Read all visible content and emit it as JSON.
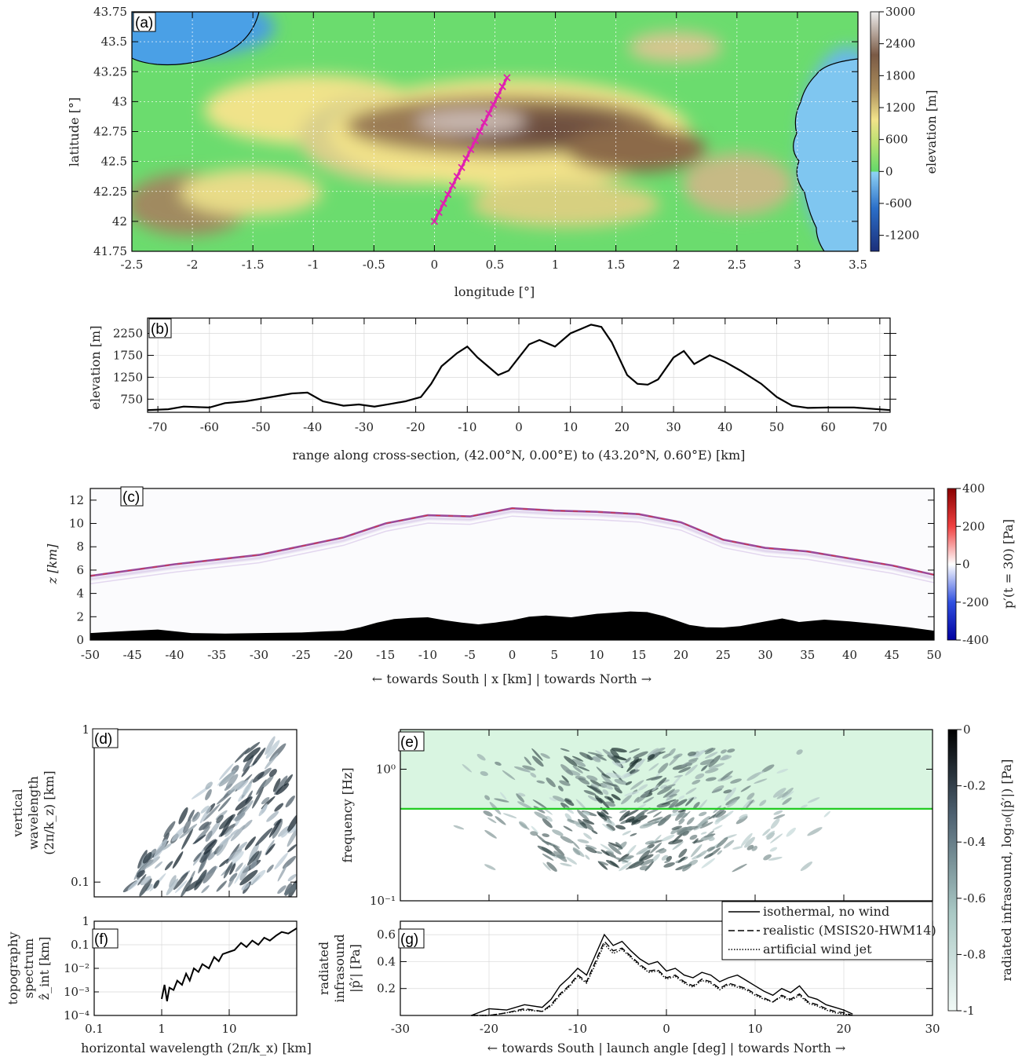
{
  "panels": {
    "a": {
      "label": "(a)",
      "xlabel": "longitude [°]",
      "ylabel": "latitude [°]",
      "xticks": [
        "-2.5",
        "-2",
        "-1.5",
        "-1",
        "-0.5",
        "0",
        "0.5",
        "1",
        "1.5",
        "2",
        "2.5",
        "3",
        "3.5"
      ],
      "yticks": [
        "43.75",
        "43.5",
        "43.25",
        "43",
        "42.75",
        "42.5",
        "42.25",
        "42",
        "41.75"
      ],
      "colorbar_label": "elevation [m]",
      "colorbar_ticks": [
        "3000",
        "2400",
        "1800",
        "1200",
        "600",
        "0",
        "-600",
        "-1200"
      ]
    },
    "b": {
      "label": "(b)",
      "ylabel": "elevation [m]",
      "xlabel": "range along cross-section, (42.00°N, 0.00°E) to (43.20°N, 0.60°E) [km]",
      "xticks": [
        "-70",
        "-60",
        "-50",
        "-40",
        "-30",
        "-20",
        "-10",
        "0",
        "10",
        "20",
        "30",
        "40",
        "50",
        "60",
        "70"
      ],
      "yticks": [
        "2250",
        "1750",
        "1250",
        "750"
      ]
    },
    "c": {
      "label": "(c)",
      "ylabel": "z [km]",
      "xlabel": "← towards South | x [km] | towards North →",
      "xticks": [
        "-50",
        "-45",
        "-40",
        "-35",
        "-30",
        "-25",
        "-20",
        "-15",
        "-10",
        "-5",
        "0",
        "5",
        "10",
        "15",
        "20",
        "25",
        "30",
        "35",
        "40",
        "45",
        "50"
      ],
      "yticks": [
        "12",
        "10",
        "8",
        "6",
        "4",
        "2",
        "0"
      ],
      "colorbar_label": "p′(t = 30) [Pa]",
      "colorbar_ticks": [
        "400",
        "200",
        "0",
        "-200",
        "-400"
      ]
    },
    "d": {
      "label": "(d)",
      "ylabel_lines": [
        "vertical",
        "wavelength",
        "(2π/k_z) [km]"
      ],
      "yticks": [
        "1",
        "0.1"
      ]
    },
    "e": {
      "label": "(e)",
      "ylabel": "frequency [Hz]",
      "yticks": [
        "10⁰",
        "10⁻¹"
      ],
      "colorbar_label": "radiated infrasound, log₁₀(|p̂′|) [Pa]",
      "colorbar_ticks": [
        "0",
        "-0.2",
        "-0.4",
        "-0.6",
        "-0.8",
        "-1"
      ]
    },
    "f": {
      "label": "(f)",
      "ylabel_lines": [
        "topography",
        "spectrum",
        "ẑ_int [km]"
      ],
      "yticks": [
        "1",
        "0.1",
        "10⁻²",
        "10⁻³",
        "10⁻⁴"
      ],
      "xticks": [
        "0.1",
        "1",
        "10"
      ],
      "xlabel": "horizontal wavelength (2π/k_x) [km]"
    },
    "g": {
      "label": "(g)",
      "ylabel_lines": [
        "radiated",
        "infrasound",
        "|p̂′| [Pa]"
      ],
      "yticks": [
        "0.6",
        "0.4",
        "0.2"
      ],
      "xticks": [
        "-30",
        "-20",
        "-10",
        "0",
        "10",
        "20",
        "30"
      ],
      "xlabel": "← towards South | launch angle [deg] | towards North →",
      "legend": [
        "isothermal, no wind",
        "realistic (MSIS20-HWM14)",
        "artificial wind jet"
      ]
    }
  },
  "colors": {
    "line": "#000000",
    "transect": "#e020b0",
    "band": "#bff0cc",
    "band_edge": "#22cc22"
  },
  "chart_data": [
    {
      "type": "heatmap",
      "panel": "a",
      "title": "",
      "xlabel": "longitude [°]",
      "ylabel": "latitude [°]",
      "xlim": [
        -2.5,
        3.5
      ],
      "ylim": [
        41.75,
        43.75
      ],
      "clim": [
        -1500,
        3000
      ],
      "transect": {
        "lon": [
          0.0,
          0.6
        ],
        "lat": [
          42.0,
          43.2
        ]
      }
    },
    {
      "type": "line",
      "panel": "b",
      "xlabel": "range along cross-section, (42.00°N, 0.00°E) to (43.20°N, 0.60°E) [km]",
      "ylabel": "elevation [m]",
      "xlim": [
        -72,
        72
      ],
      "ylim": [
        450,
        2600
      ],
      "x": [
        -72,
        -68,
        -65,
        -60,
        -57,
        -53,
        -48,
        -44,
        -41,
        -38,
        -34,
        -31,
        -28,
        -25,
        -22,
        -19,
        -17,
        -15,
        -12,
        -10,
        -8,
        -6,
        -4,
        -2,
        0,
        2,
        4,
        7,
        10,
        12,
        14,
        16,
        18,
        21,
        23,
        25,
        27,
        30,
        32,
        34,
        37,
        40,
        43,
        47,
        50,
        53,
        56,
        60,
        65,
        72
      ],
      "y": [
        500,
        520,
        580,
        560,
        660,
        700,
        800,
        880,
        900,
        700,
        600,
        630,
        580,
        640,
        700,
        800,
        1100,
        1500,
        1800,
        1950,
        1700,
        1500,
        1300,
        1400,
        1700,
        2000,
        2100,
        1950,
        2250,
        2350,
        2450,
        2400,
        2050,
        1300,
        1100,
        1080,
        1200,
        1700,
        1850,
        1550,
        1750,
        1600,
        1400,
        1100,
        800,
        600,
        550,
        560,
        560,
        500
      ]
    },
    {
      "type": "heatmap",
      "panel": "c",
      "xlabel": "← towards South | x [km] | towards North →",
      "ylabel": "z [km]",
      "xlim": [
        -50,
        50
      ],
      "ylim": [
        0,
        13
      ],
      "clim": [
        -400,
        400
      ],
      "terrain_x": [
        -50,
        -45,
        -42,
        -38,
        -34,
        -30,
        -25,
        -22,
        -20,
        -18,
        -16,
        -14,
        -12,
        -10,
        -8,
        -6,
        -4,
        -2,
        0,
        2,
        4,
        7,
        10,
        12,
        14,
        16,
        18,
        21,
        23,
        25,
        27,
        30,
        32,
        34,
        37,
        40,
        43,
        47,
        50
      ],
      "terrain_z": [
        0.6,
        0.8,
        0.9,
        0.6,
        0.55,
        0.6,
        0.65,
        0.75,
        0.8,
        1.1,
        1.5,
        1.8,
        1.9,
        1.95,
        1.7,
        1.5,
        1.35,
        1.5,
        1.7,
        2.0,
        2.1,
        1.95,
        2.25,
        2.35,
        2.45,
        2.4,
        2.05,
        1.3,
        1.1,
        1.08,
        1.2,
        1.6,
        1.85,
        1.55,
        1.75,
        1.6,
        1.4,
        1.1,
        0.8
      ],
      "wavefront_x": [
        -50,
        -40,
        -30,
        -20,
        -15,
        -10,
        -5,
        0,
        5,
        10,
        15,
        20,
        25,
        30,
        35,
        40,
        45,
        50
      ],
      "wavefront_z": [
        5.5,
        6.5,
        7.3,
        8.8,
        10.0,
        10.7,
        10.6,
        11.3,
        11.1,
        11.0,
        10.8,
        10.1,
        8.6,
        7.9,
        7.6,
        7.0,
        6.4,
        5.6
      ]
    },
    {
      "type": "heatmap",
      "panel": "d",
      "xlim": [
        0.1,
        100
      ],
      "ylim": [
        0.08,
        1
      ]
    },
    {
      "type": "heatmap",
      "panel": "e",
      "ylabel": "frequency [Hz]",
      "xlim": [
        -30,
        30
      ],
      "ylim": [
        0.1,
        2
      ],
      "clim": [
        -1,
        0
      ],
      "band": {
        "ymin": 0.5,
        "ymax": 2
      }
    },
    {
      "type": "line",
      "panel": "f",
      "xlabel": "horizontal wavelength (2π/k_x) [km]",
      "xscale": "log",
      "yscale": "log",
      "xlim": [
        0.1,
        100
      ],
      "ylim": [
        0.0001,
        1
      ],
      "x": [
        1,
        1.1,
        1.2,
        1.3,
        1.5,
        1.7,
        2,
        2.3,
        2.6,
        3,
        3.5,
        4,
        5,
        6,
        7,
        8,
        10,
        12,
        15,
        18,
        22,
        27,
        33,
        40,
        50,
        60,
        75,
        100
      ],
      "y": [
        0.0005,
        0.002,
        0.0004,
        0.0015,
        0.0012,
        0.003,
        0.002,
        0.006,
        0.003,
        0.01,
        0.007,
        0.015,
        0.01,
        0.03,
        0.02,
        0.04,
        0.05,
        0.06,
        0.12,
        0.08,
        0.15,
        0.1,
        0.2,
        0.15,
        0.25,
        0.35,
        0.3,
        0.5
      ]
    },
    {
      "type": "line",
      "panel": "g",
      "xlabel": "← towards South | launch angle [deg] | towards North →",
      "xlim": [
        -30,
        30
      ],
      "ylim": [
        0,
        0.7
      ],
      "x": [
        -22,
        -20,
        -18,
        -16,
        -14,
        -13,
        -12,
        -11,
        -10,
        -9,
        -8,
        -7,
        -6,
        -5,
        -4,
        -3,
        -2,
        -1,
        0,
        1,
        2,
        3,
        4,
        5,
        6,
        7,
        8,
        9,
        10,
        11,
        12,
        13,
        14,
        15,
        16,
        17,
        18,
        19,
        20,
        21
      ],
      "series": [
        {
          "name": "isothermal, no wind",
          "values": [
            0.0,
            0.05,
            0.04,
            0.08,
            0.06,
            0.12,
            0.22,
            0.28,
            0.35,
            0.3,
            0.45,
            0.6,
            0.52,
            0.55,
            0.48,
            0.42,
            0.38,
            0.4,
            0.33,
            0.35,
            0.3,
            0.28,
            0.32,
            0.3,
            0.25,
            0.28,
            0.3,
            0.26,
            0.22,
            0.18,
            0.15,
            0.2,
            0.17,
            0.22,
            0.14,
            0.12,
            0.08,
            0.06,
            0.04,
            0.01
          ]
        },
        {
          "name": "realistic (MSIS20-HWM14)",
          "values": [
            0.0,
            0.0,
            0.02,
            0.05,
            0.03,
            0.08,
            0.16,
            0.22,
            0.3,
            0.25,
            0.4,
            0.55,
            0.48,
            0.5,
            0.44,
            0.38,
            0.33,
            0.34,
            0.28,
            0.3,
            0.25,
            0.22,
            0.27,
            0.25,
            0.2,
            0.24,
            0.22,
            0.2,
            0.16,
            0.13,
            0.1,
            0.15,
            0.12,
            0.16,
            0.1,
            0.08,
            0.05,
            0.03,
            0.02,
            0.0
          ]
        },
        {
          "name": "artificial wind jet",
          "values": [
            0.0,
            0.0,
            0.02,
            0.04,
            0.03,
            0.07,
            0.15,
            0.21,
            0.29,
            0.24,
            0.38,
            0.53,
            0.46,
            0.49,
            0.43,
            0.37,
            0.32,
            0.33,
            0.27,
            0.29,
            0.24,
            0.21,
            0.26,
            0.24,
            0.19,
            0.23,
            0.21,
            0.19,
            0.15,
            0.12,
            0.1,
            0.14,
            0.11,
            0.15,
            0.09,
            0.07,
            0.04,
            0.02,
            0.01,
            0.0
          ]
        }
      ]
    }
  ]
}
